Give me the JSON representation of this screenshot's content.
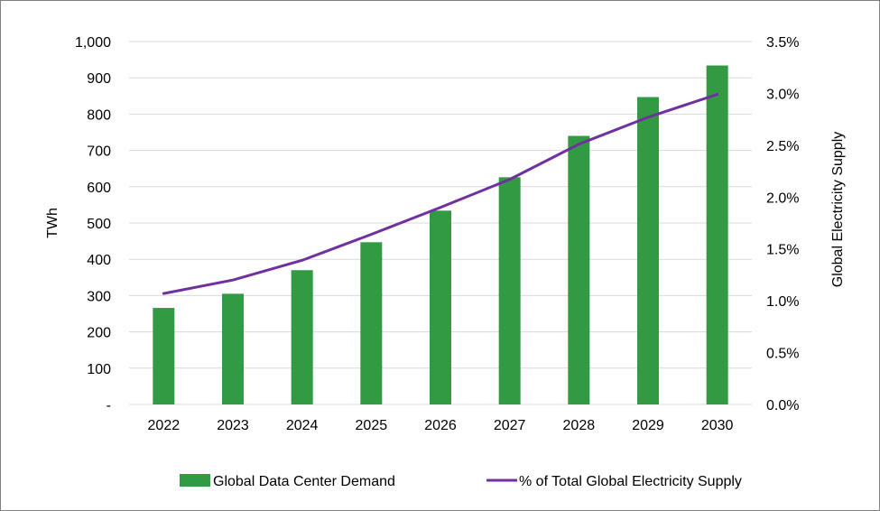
{
  "chart_data": {
    "type": "bar+line",
    "categories": [
      "2022",
      "2023",
      "2024",
      "2025",
      "2026",
      "2027",
      "2028",
      "2029",
      "2030"
    ],
    "series": [
      {
        "name": "Global Data Center Demand",
        "type": "bar",
        "axis": "left",
        "color": "#319a43",
        "values": [
          266,
          305,
          370,
          447,
          534,
          626,
          740,
          847,
          934
        ]
      },
      {
        "name": "% of Total Global Electricity Supply",
        "type": "line",
        "axis": "right",
        "color": "#7030a0",
        "values": [
          1.07,
          1.2,
          1.39,
          1.64,
          1.9,
          2.17,
          2.51,
          2.77,
          2.99
        ]
      }
    ],
    "ylabel": "TWh",
    "ylabel_right": "Global Electricity Supply",
    "ylim": [
      0,
      1000
    ],
    "ylim_right": [
      0,
      3.5
    ],
    "yticks": [
      "-",
      "100",
      "200",
      "300",
      "400",
      "500",
      "600",
      "700",
      "800",
      "900",
      "1,000"
    ],
    "yticks_right": [
      "0.0%",
      "0.5%",
      "1.0%",
      "1.5%",
      "2.0%",
      "2.5%",
      "3.0%",
      "3.5%"
    ],
    "grid": true,
    "legend_position": "bottom"
  }
}
